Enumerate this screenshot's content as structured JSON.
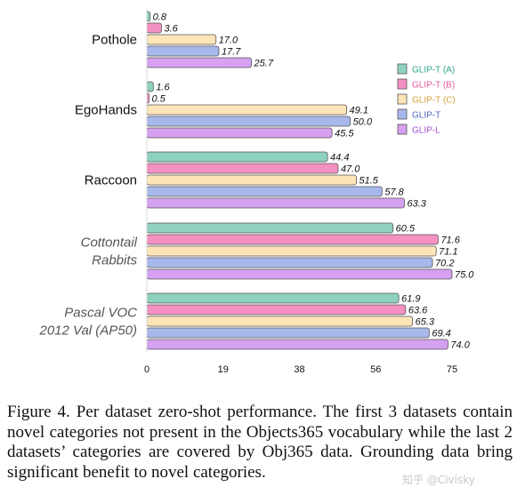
{
  "chart_data": {
    "type": "bar",
    "orientation": "horizontal",
    "categories": [
      {
        "lines": [
          "Pothole"
        ],
        "italic": false
      },
      {
        "lines": [
          "EgoHands"
        ],
        "italic": false
      },
      {
        "lines": [
          "Raccoon"
        ],
        "italic": false
      },
      {
        "lines": [
          "Cottontail",
          "Rabbits"
        ],
        "italic": true
      },
      {
        "lines": [
          "Pascal VOC",
          "2012 Val (AP50)"
        ],
        "italic": true
      }
    ],
    "series": [
      {
        "name": "GLIP-T (A)",
        "color": "#8fd1bf",
        "text_color": "#2aa58a",
        "values": [
          0.8,
          1.6,
          44.4,
          60.5,
          61.9
        ]
      },
      {
        "name": "GLIP-T (B)",
        "color": "#f490c2",
        "text_color": "#e0579b",
        "values": [
          3.6,
          0.5,
          47.0,
          71.6,
          63.6
        ]
      },
      {
        "name": "GLIP-T (C)",
        "color": "#fde5b8",
        "text_color": "#d9a23b",
        "values": [
          17.0,
          49.1,
          51.5,
          71.1,
          65.3
        ]
      },
      {
        "name": "GLIP-T",
        "color": "#a7b8ec",
        "text_color": "#4f66c4",
        "values": [
          17.7,
          50.0,
          57.8,
          70.2,
          69.4
        ]
      },
      {
        "name": "GLIP-L",
        "color": "#d5a1f0",
        "text_color": "#a24fd1",
        "values": [
          25.7,
          45.5,
          63.3,
          75.0,
          74.0
        ]
      }
    ],
    "xlim": [
      0,
      75
    ],
    "xticks": [
      "0",
      "19",
      "38",
      "56",
      "75"
    ],
    "legend_position": "top-right",
    "grid": false
  },
  "caption": "Figure 4.  Per dataset zero-shot performance.  The first 3 datasets contain novel categories not present in the Objects365 vocabulary while the last 2 datasets’ categories are covered by Obj365 data. Grounding data bring significant benefit to novel categories.",
  "watermark": "知乎 @Civisky"
}
